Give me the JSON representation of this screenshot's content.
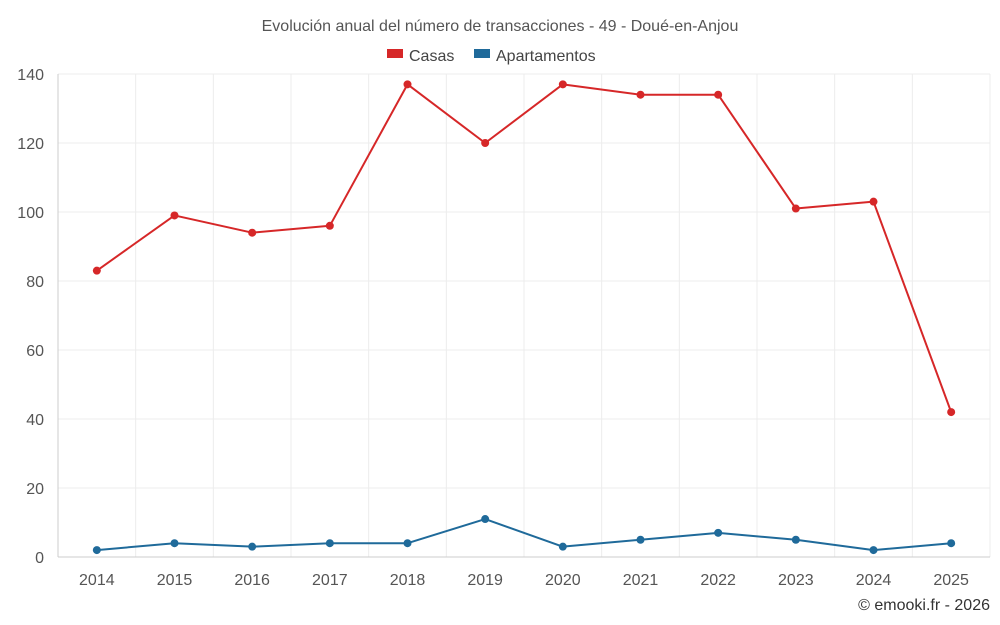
{
  "chart_data": {
    "type": "line",
    "title": "Evolución anual del número de transacciones - 49 - Doué-en-Anjou",
    "x": [
      "2014",
      "2015",
      "2016",
      "2017",
      "2018",
      "2019",
      "2020",
      "2021",
      "2022",
      "2023",
      "2024",
      "2025"
    ],
    "series": [
      {
        "name": "Casas",
        "color": "#d62728",
        "values": [
          83,
          99,
          94,
          96,
          137,
          120,
          137,
          134,
          134,
          101,
          103,
          42
        ]
      },
      {
        "name": "Apartamentos",
        "color": "#1f6a9a",
        "values": [
          2,
          4,
          3,
          4,
          4,
          11,
          3,
          5,
          7,
          5,
          2,
          4
        ]
      }
    ],
    "yticks": [
      "0",
      "20",
      "40",
      "60",
      "80",
      "100",
      "120",
      "140"
    ],
    "ylim": [
      0,
      140
    ],
    "xlabel": "",
    "ylabel": "",
    "grid": true,
    "legend_position": "top-center"
  },
  "credit": "© emooki.fr - 2026"
}
